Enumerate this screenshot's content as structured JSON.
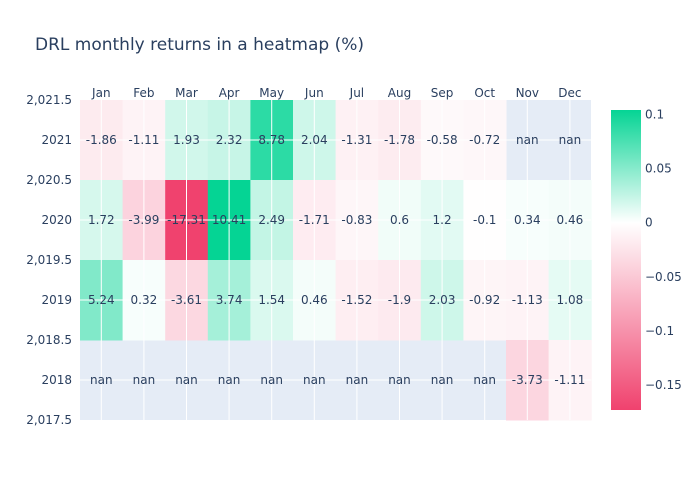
{
  "chart_data": {
    "type": "heatmap",
    "title": "DRL monthly returns in a heatmap (%)",
    "x_categories": [
      "Jan",
      "Feb",
      "Mar",
      "Apr",
      "May",
      "Jun",
      "Jul",
      "Aug",
      "Sep",
      "Oct",
      "Nov",
      "Dec"
    ],
    "y_categories": [
      "2021",
      "2020",
      "2019",
      "2018"
    ],
    "y_axis_ticks": [
      "2,021.5",
      "2,020.5",
      "2,019.5",
      "2,018.5",
      "2,017.5"
    ],
    "x_axis_position": "top",
    "cell_text": [
      [
        "-1.86",
        "-1.11",
        "1.93",
        "2.32",
        "8.78",
        "2.04",
        "-1.31",
        "-1.78",
        "-0.58",
        "-0.72",
        "nan",
        "nan"
      ],
      [
        "1.72",
        "-3.99",
        "-17.31",
        "10.41",
        "2.49",
        "-1.71",
        "-0.83",
        "0.6",
        "1.2",
        "-0.1",
        "0.34",
        "0.46"
      ],
      [
        "5.24",
        "0.32",
        "-3.61",
        "3.74",
        "1.54",
        "0.46",
        "-1.52",
        "-1.9",
        "2.03",
        "-0.92",
        "-1.13",
        "1.08"
      ],
      [
        "nan",
        "nan",
        "nan",
        "nan",
        "nan",
        "nan",
        "nan",
        "nan",
        "nan",
        "nan",
        "-3.73",
        "-1.11"
      ]
    ],
    "values": [
      [
        -0.0186,
        -0.0111,
        0.0193,
        0.0232,
        0.0878,
        0.0204,
        -0.0131,
        -0.0178,
        -0.0058,
        -0.0072,
        null,
        null
      ],
      [
        0.0172,
        -0.0399,
        -0.1731,
        0.1041,
        0.0249,
        -0.0171,
        -0.0083,
        0.006,
        0.012,
        -0.001,
        0.0034,
        0.0046
      ],
      [
        0.0524,
        0.0032,
        -0.0361,
        0.0374,
        0.0154,
        0.0046,
        -0.0152,
        -0.019,
        0.0203,
        -0.0092,
        -0.0113,
        0.0108
      ],
      [
        null,
        null,
        null,
        null,
        null,
        null,
        null,
        null,
        null,
        null,
        -0.0373,
        -0.0111
      ]
    ],
    "colorscale": {
      "zmin": -0.1731,
      "zmax": 0.1041,
      "zero_color": "#ffffff",
      "neg_color": "#f0426e",
      "pos_color": "#05d494",
      "missing_color": "#e5ecf6",
      "ticks": [
        {
          "value": 0.1,
          "label": "0.1"
        },
        {
          "value": 0.05,
          "label": "0.05"
        },
        {
          "value": 0,
          "label": "0"
        },
        {
          "value": -0.05,
          "label": "−0.05"
        },
        {
          "value": -0.1,
          "label": "−0.1"
        },
        {
          "value": -0.15,
          "label": "−0.15"
        }
      ]
    },
    "grid": true,
    "legend": "colorbar-right"
  }
}
